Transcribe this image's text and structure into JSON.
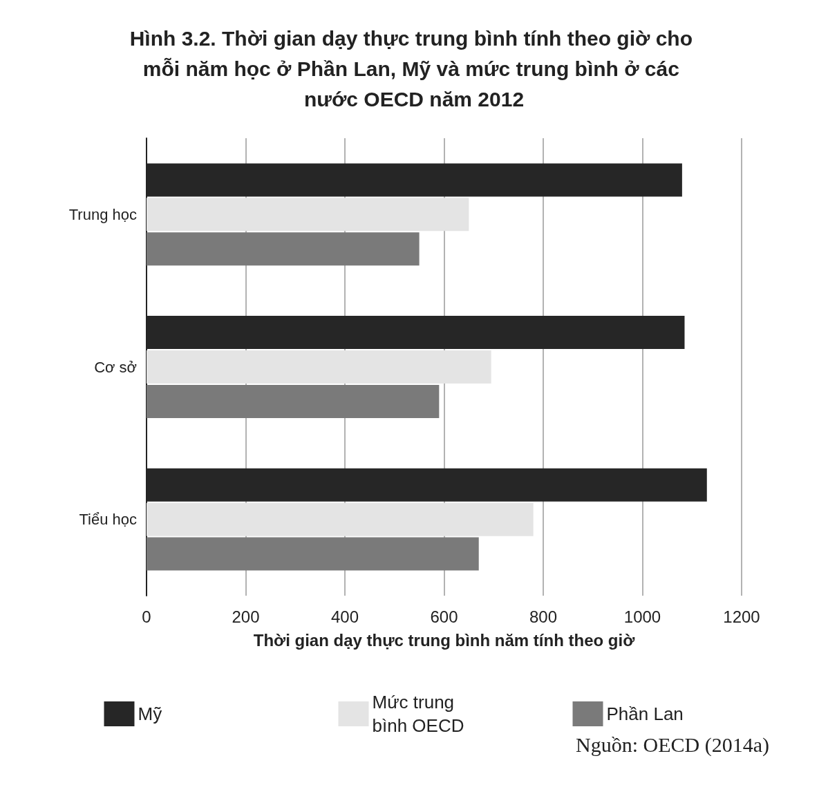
{
  "chart_data": {
    "type": "bar",
    "orientation": "horizontal",
    "title": "Hình 3.2. Thời gian dạy thực trung bình tính theo giờ cho mỗi năm học ở Phần Lan, Mỹ và mức trung bình ở các nước OECD năm 2012",
    "xlabel": "Thời gian dạy thực trung bình năm tính theo giờ",
    "categories": [
      "Trung học",
      "Cơ sở",
      "Tiểu học"
    ],
    "series": [
      {
        "name": "Mỹ",
        "color": "#262626",
        "values": [
          1080,
          1085,
          1130
        ]
      },
      {
        "name": "Mức trung bình OECD",
        "color": "#e4e4e4",
        "values": [
          650,
          695,
          780
        ]
      },
      {
        "name": "Phần Lan",
        "color": "#7a7a7a",
        "values": [
          550,
          590,
          670
        ]
      }
    ],
    "xlim": [
      0,
      1200
    ],
    "xticks": [
      0,
      200,
      400,
      600,
      800,
      1000,
      1200
    ],
    "grid": "x",
    "legend": "bottom",
    "annotations": [
      "Nguồn: OECD (2014a)"
    ]
  }
}
